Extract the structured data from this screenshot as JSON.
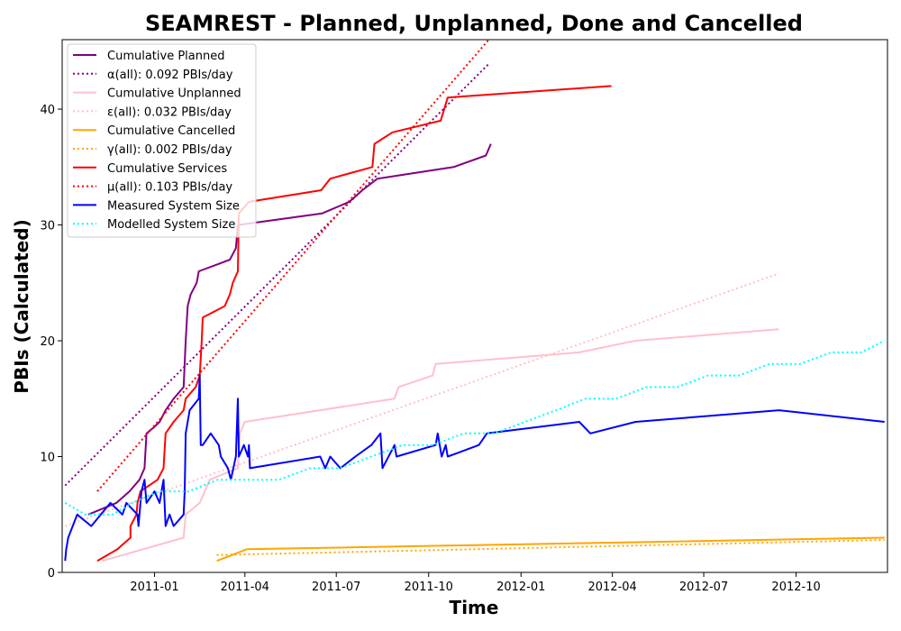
{
  "chart_data": {
    "type": "line",
    "title": "SEAMREST - Planned, Unplanned, Done  and Cancelled",
    "xlabel": "Time",
    "ylabel": "PBIs (Calculated)",
    "xlim": [
      "2010-10-01",
      "2012-12-31"
    ],
    "ylim": [
      0,
      46
    ],
    "x_ticks": [
      "2011-01-01",
      "2011-04-01",
      "2011-07-01",
      "2011-10-01",
      "2012-01-01",
      "2012-04-01",
      "2012-07-01",
      "2012-10-01"
    ],
    "x_tick_labels": [
      "2011-01",
      "2011-04",
      "2011-07",
      "2011-10",
      "2012-01",
      "2012-04",
      "2012-07",
      "2012-10"
    ],
    "y_ticks": [
      0,
      10,
      20,
      30,
      40
    ],
    "grid": false,
    "legend_position": "top-left",
    "series": [
      {
        "name": "Cumulative Planned",
        "color": "#800080",
        "style": "solid",
        "points": [
          [
            "2010-10-27",
            5
          ],
          [
            "2010-11-24",
            6
          ],
          [
            "2010-12-07",
            7
          ],
          [
            "2010-12-17",
            8
          ],
          [
            "2010-12-22",
            9
          ],
          [
            "2010-12-24",
            12
          ],
          [
            "2010-12-31",
            12.5
          ],
          [
            "2011-01-06",
            13
          ],
          [
            "2011-01-12",
            14
          ],
          [
            "2011-01-20",
            15
          ],
          [
            "2011-01-30",
            16
          ],
          [
            "2011-02-01",
            20
          ],
          [
            "2011-02-03",
            23
          ],
          [
            "2011-02-06",
            24
          ],
          [
            "2011-02-12",
            25
          ],
          [
            "2011-02-14",
            26
          ],
          [
            "2011-03-17",
            27
          ],
          [
            "2011-03-23",
            28
          ],
          [
            "2011-03-25",
            30
          ],
          [
            "2011-06-17",
            31
          ],
          [
            "2011-07-14",
            32
          ],
          [
            "2011-07-27",
            33
          ],
          [
            "2011-08-11",
            34
          ],
          [
            "2011-10-26",
            35
          ],
          [
            "2011-11-27",
            36
          ],
          [
            "2011-12-02",
            37
          ]
        ]
      },
      {
        "name": "α(all): 0.092 PBIs/day",
        "color": "#800080",
        "style": "dotted",
        "points": [
          [
            "2010-10-04",
            7.5
          ],
          [
            "2011-12-01",
            44
          ]
        ]
      },
      {
        "name": "Cumulative Unplanned",
        "color": "#ffc0cb",
        "style": "solid",
        "points": [
          [
            "2010-11-10",
            1
          ],
          [
            "2011-01-30",
            3
          ],
          [
            "2011-02-01",
            5
          ],
          [
            "2011-02-15",
            6
          ],
          [
            "2011-02-25",
            8
          ],
          [
            "2011-03-25",
            9
          ],
          [
            "2011-03-27",
            12
          ],
          [
            "2011-04-01",
            13
          ],
          [
            "2011-08-28",
            15
          ],
          [
            "2011-09-01",
            16
          ],
          [
            "2011-10-05",
            17
          ],
          [
            "2011-10-08",
            18
          ],
          [
            "2012-02-28",
            19
          ],
          [
            "2012-04-24",
            20
          ],
          [
            "2012-09-14",
            21
          ]
        ]
      },
      {
        "name": "ε(all): 0.032 PBIs/day",
        "color": "#ffc0cb",
        "style": "dotted",
        "points": [
          [
            "2010-10-04",
            4
          ],
          [
            "2012-09-14",
            25.8
          ]
        ]
      },
      {
        "name": "Cumulative Cancelled",
        "color": "#ffa500",
        "style": "solid",
        "points": [
          [
            "2011-03-04",
            1
          ],
          [
            "2011-04-03",
            2
          ],
          [
            "2012-12-28",
            3
          ]
        ]
      },
      {
        "name": "γ(all): 0.002 PBIs/day",
        "color": "#ffa500",
        "style": "dotted",
        "points": [
          [
            "2011-03-04",
            1.5
          ],
          [
            "2012-12-28",
            2.8
          ]
        ]
      },
      {
        "name": "Cumulative Services",
        "color": "#ff0000",
        "style": "solid",
        "points": [
          [
            "2010-11-05",
            1
          ],
          [
            "2010-11-25",
            2
          ],
          [
            "2010-12-08",
            3
          ],
          [
            "2010-12-08",
            4
          ],
          [
            "2010-12-14",
            5
          ],
          [
            "2010-12-15",
            6
          ],
          [
            "2010-12-18",
            7
          ],
          [
            "2011-01-04",
            8
          ],
          [
            "2011-01-10",
            9
          ],
          [
            "2011-01-12",
            12
          ],
          [
            "2011-01-20",
            13
          ],
          [
            "2011-01-30",
            14
          ],
          [
            "2011-02-01",
            15
          ],
          [
            "2011-02-11",
            16
          ],
          [
            "2011-02-15",
            17
          ],
          [
            "2011-02-17",
            20
          ],
          [
            "2011-02-18",
            22
          ],
          [
            "2011-03-12",
            23
          ],
          [
            "2011-03-17",
            24
          ],
          [
            "2011-03-20",
            25
          ],
          [
            "2011-03-25",
            26
          ],
          [
            "2011-03-26",
            31
          ],
          [
            "2011-04-05",
            32
          ],
          [
            "2011-06-16",
            33
          ],
          [
            "2011-06-25",
            34
          ],
          [
            "2011-08-06",
            35
          ],
          [
            "2011-08-08",
            37
          ],
          [
            "2011-08-26",
            38
          ],
          [
            "2011-10-13",
            39
          ],
          [
            "2011-10-20",
            41
          ],
          [
            "2012-03-31",
            42
          ]
        ]
      },
      {
        "name": "μ(all): 0.103 PBIs/day",
        "color": "#ff0000",
        "style": "dotted",
        "points": [
          [
            "2010-11-05",
            7
          ],
          [
            "2011-11-30",
            46
          ]
        ]
      },
      {
        "name": "Measured System Size",
        "color": "#0000ff",
        "style": "solid",
        "points": [
          [
            "2010-10-04",
            1
          ],
          [
            "2010-10-05",
            2
          ],
          [
            "2010-10-07",
            3
          ],
          [
            "2010-10-16",
            5
          ],
          [
            "2010-10-30",
            4
          ],
          [
            "2010-11-18",
            6
          ],
          [
            "2010-11-30",
            5
          ],
          [
            "2010-12-04",
            6
          ],
          [
            "2010-12-15",
            5
          ],
          [
            "2010-12-16",
            4
          ],
          [
            "2010-12-19",
            7
          ],
          [
            "2010-12-22",
            8
          ],
          [
            "2010-12-24",
            6
          ],
          [
            "2011-01-01",
            7
          ],
          [
            "2011-01-06",
            6
          ],
          [
            "2011-01-10",
            8
          ],
          [
            "2011-01-12",
            4
          ],
          [
            "2011-01-16",
            5
          ],
          [
            "2011-01-20",
            4
          ],
          [
            "2011-01-30",
            5
          ],
          [
            "2011-01-31",
            7
          ],
          [
            "2011-02-01",
            12
          ],
          [
            "2011-02-03",
            13
          ],
          [
            "2011-02-05",
            14
          ],
          [
            "2011-02-14",
            15
          ],
          [
            "2011-02-15",
            17
          ],
          [
            "2011-02-16",
            11
          ],
          [
            "2011-02-18",
            11
          ],
          [
            "2011-02-26",
            12
          ],
          [
            "2011-03-06",
            11
          ],
          [
            "2011-03-08",
            10
          ],
          [
            "2011-03-15",
            9
          ],
          [
            "2011-03-18",
            8
          ],
          [
            "2011-03-23",
            10
          ],
          [
            "2011-03-25",
            15
          ],
          [
            "2011-03-26",
            10
          ],
          [
            "2011-03-31",
            11
          ],
          [
            "2011-04-04",
            10
          ],
          [
            "2011-04-05",
            11
          ],
          [
            "2011-04-06",
            9
          ],
          [
            "2011-06-15",
            10
          ],
          [
            "2011-06-20",
            9
          ],
          [
            "2011-06-25",
            10
          ],
          [
            "2011-07-05",
            9
          ],
          [
            "2011-07-20",
            10
          ],
          [
            "2011-08-05",
            11
          ],
          [
            "2011-08-14",
            12
          ],
          [
            "2011-08-16",
            9
          ],
          [
            "2011-08-28",
            11
          ],
          [
            "2011-08-30",
            10
          ],
          [
            "2011-10-08",
            11
          ],
          [
            "2011-10-10",
            12
          ],
          [
            "2011-10-14",
            10
          ],
          [
            "2011-10-18",
            11
          ],
          [
            "2011-10-20",
            10
          ],
          [
            "2011-11-20",
            11
          ],
          [
            "2011-11-28",
            12
          ],
          [
            "2012-02-28",
            13
          ],
          [
            "2012-03-10",
            12
          ],
          [
            "2012-04-24",
            13
          ],
          [
            "2012-09-14",
            14
          ],
          [
            "2012-12-28",
            13
          ]
        ]
      },
      {
        "name": "Modelled System Size",
        "color": "#00ffff",
        "style": "dotted",
        "points": [
          [
            "2010-10-04",
            6
          ],
          [
            "2010-10-24",
            5
          ],
          [
            "2010-11-20",
            5
          ],
          [
            "2010-12-10",
            6
          ],
          [
            "2011-01-05",
            7
          ],
          [
            "2011-02-04",
            7
          ],
          [
            "2011-03-05",
            8
          ],
          [
            "2011-04-05",
            8
          ],
          [
            "2011-05-05",
            8
          ],
          [
            "2011-06-05",
            9
          ],
          [
            "2011-07-05",
            9
          ],
          [
            "2011-08-05",
            10
          ],
          [
            "2011-09-05",
            11
          ],
          [
            "2011-10-05",
            11
          ],
          [
            "2011-11-05",
            12
          ],
          [
            "2011-12-05",
            12
          ],
          [
            "2012-01-05",
            13
          ],
          [
            "2012-02-05",
            14
          ],
          [
            "2012-03-05",
            15
          ],
          [
            "2012-04-05",
            15
          ],
          [
            "2012-05-05",
            16
          ],
          [
            "2012-06-05",
            16
          ],
          [
            "2012-07-05",
            17
          ],
          [
            "2012-08-05",
            17
          ],
          [
            "2012-09-05",
            18
          ],
          [
            "2012-10-05",
            18
          ],
          [
            "2012-11-05",
            19
          ],
          [
            "2012-12-05",
            19
          ],
          [
            "2012-12-28",
            20
          ]
        ]
      }
    ]
  }
}
